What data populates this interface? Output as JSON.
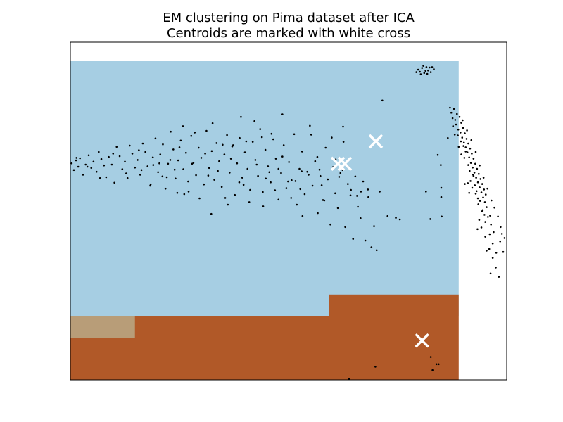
{
  "chart_data": {
    "type": "scatter",
    "title_lines": [
      "EM clustering on Pima dataset after ICA",
      "Centroids are marked with white cross"
    ],
    "xlabel": "",
    "ylabel": "",
    "xlim": [
      0,
      100
    ],
    "ylim": [
      0,
      80
    ],
    "axis_ticks": "none",
    "grid": false,
    "legend": "none",
    "region_colors": {
      "light_blue": "#a6cee3",
      "rust": "#b15928",
      "tan": "#b89d78",
      "white": "#ffffff"
    },
    "regions": [
      {
        "color": "light_blue",
        "x0": 0,
        "x1": 89,
        "y0": 15,
        "y1": 75.5
      },
      {
        "color": "rust",
        "x0": 0,
        "x1": 59.3,
        "y0": 0,
        "y1": 15
      },
      {
        "color": "rust",
        "x0": 59.3,
        "x1": 89,
        "y0": 0,
        "y1": 20.2
      },
      {
        "color": "tan",
        "x0": 0,
        "x1": 14.8,
        "y0": 10,
        "y1": 15
      }
    ],
    "point_color": "#000000",
    "centroid_color": "#ffffff",
    "centroids": [
      {
        "x": 61.3,
        "y": 51.2
      },
      {
        "x": 62.9,
        "y": 51.2
      },
      {
        "x": 70.0,
        "y": 56.5
      },
      {
        "x": 80.6,
        "y": 9.3
      }
    ],
    "points": [
      [
        0.3,
        51.3
      ],
      [
        0.8,
        49.7
      ],
      [
        1.3,
        52.0
      ],
      [
        1.8,
        50.5
      ],
      [
        2.2,
        52.5
      ],
      [
        2.9,
        48.6
      ],
      [
        3.5,
        51.0
      ],
      [
        4.2,
        53.2
      ],
      [
        4.8,
        50.2
      ],
      [
        5.3,
        51.7
      ],
      [
        6.0,
        49.3
      ],
      [
        6.5,
        54.0
      ],
      [
        7.1,
        52.3
      ],
      [
        7.7,
        50.8
      ],
      [
        8.2,
        48.0
      ],
      [
        8.8,
        52.8
      ],
      [
        9.5,
        51.0
      ],
      [
        10.1,
        46.7
      ],
      [
        10.6,
        55.2
      ],
      [
        11.3,
        53.0
      ],
      [
        11.9,
        49.9
      ],
      [
        12.5,
        51.7
      ],
      [
        13.1,
        47.8
      ],
      [
        13.6,
        55.5
      ],
      [
        14.2,
        53.6
      ],
      [
        14.8,
        50.3
      ],
      [
        15.4,
        52.1
      ],
      [
        16.0,
        48.6
      ],
      [
        16.6,
        56.0
      ],
      [
        17.2,
        54.0
      ],
      [
        17.7,
        50.6
      ],
      [
        18.3,
        46.0
      ],
      [
        18.9,
        52.7
      ],
      [
        19.5,
        57.2
      ],
      [
        20.1,
        49.2
      ],
      [
        20.6,
        53.4
      ],
      [
        21.2,
        55.8
      ],
      [
        21.8,
        45.3
      ],
      [
        22.4,
        51.2
      ],
      [
        23.0,
        58.8
      ],
      [
        23.6,
        54.6
      ],
      [
        24.1,
        47.7
      ],
      [
        24.7,
        52.0
      ],
      [
        25.3,
        56.7
      ],
      [
        25.9,
        49.9
      ],
      [
        26.5,
        53.8
      ],
      [
        27.1,
        44.6
      ],
      [
        27.7,
        57.8
      ],
      [
        28.2,
        51.4
      ],
      [
        28.8,
        48.5
      ],
      [
        29.4,
        55.0
      ],
      [
        30.0,
        52.6
      ],
      [
        30.6,
        46.3
      ],
      [
        31.2,
        59.0
      ],
      [
        31.8,
        50.2
      ],
      [
        32.4,
        54.2
      ],
      [
        33.0,
        47.4
      ],
      [
        33.5,
        56.1
      ],
      [
        34.1,
        51.8
      ],
      [
        34.7,
        45.7
      ],
      [
        35.3,
        53.4
      ],
      [
        35.9,
        58.0
      ],
      [
        36.5,
        49.1
      ],
      [
        37.1,
        55.3
      ],
      [
        37.7,
        43.8
      ],
      [
        38.2,
        51.3
      ],
      [
        38.8,
        57.3
      ],
      [
        39.4,
        47.9
      ],
      [
        40.0,
        53.9
      ],
      [
        40.6,
        50.0
      ],
      [
        41.2,
        45.0
      ],
      [
        41.8,
        56.4
      ],
      [
        42.4,
        52.1
      ],
      [
        43.0,
        48.3
      ],
      [
        43.5,
        59.4
      ],
      [
        44.1,
        44.5
      ],
      [
        44.7,
        54.5
      ],
      [
        45.3,
        50.6
      ],
      [
        45.9,
        46.8
      ],
      [
        46.5,
        57.0
      ],
      [
        47.1,
        52.4
      ],
      [
        47.7,
        42.7
      ],
      [
        48.3,
        49.0
      ],
      [
        48.9,
        55.6
      ],
      [
        49.5,
        45.4
      ],
      [
        50.1,
        51.6
      ],
      [
        50.7,
        47.3
      ],
      [
        51.3,
        58.2
      ],
      [
        51.9,
        41.5
      ],
      [
        52.5,
        50.0
      ],
      [
        53.1,
        54.1
      ],
      [
        53.7,
        44.0
      ],
      [
        54.3,
        49.3
      ],
      [
        54.9,
        60.2
      ],
      [
        55.5,
        46.0
      ],
      [
        56.1,
        51.8
      ],
      [
        56.7,
        39.5
      ],
      [
        57.3,
        48.3
      ],
      [
        57.9,
        42.6
      ],
      [
        58.5,
        55.0
      ],
      [
        59.0,
        47.5
      ],
      [
        59.6,
        36.8
      ],
      [
        60.2,
        50.4
      ],
      [
        60.7,
        44.2
      ],
      [
        61.3,
        40.7
      ],
      [
        61.9,
        49.0
      ],
      [
        62.5,
        60.0
      ],
      [
        63.0,
        36.2
      ],
      [
        63.6,
        46.4
      ],
      [
        64.2,
        43.7
      ],
      [
        64.8,
        33.4
      ],
      [
        65.3,
        48.2
      ],
      [
        65.9,
        41.0
      ],
      [
        66.5,
        38.3
      ],
      [
        67.1,
        47.0
      ],
      [
        67.6,
        33.0
      ],
      [
        68.3,
        43.3
      ],
      [
        69.0,
        31.4
      ],
      [
        69.6,
        36.4
      ],
      [
        70.2,
        30.7
      ],
      [
        70.9,
        44.6
      ],
      [
        71.5,
        66.2
      ],
      [
        72.7,
        38.8
      ],
      [
        74.6,
        38.4
      ],
      [
        75.5,
        38.0
      ],
      [
        81.5,
        44.6
      ],
      [
        82.5,
        38.1
      ],
      [
        84.2,
        53.3
      ],
      [
        84.9,
        50.9
      ],
      [
        85.0,
        45.5
      ],
      [
        85.0,
        43.3
      ],
      [
        85.1,
        38.7
      ],
      [
        86.5,
        57.3
      ],
      [
        1.4,
        52.6
      ],
      [
        3.9,
        50.5
      ],
      [
        6.8,
        47.8
      ],
      [
        9.8,
        53.6
      ],
      [
        12.8,
        48.9
      ],
      [
        15.7,
        54.4
      ],
      [
        19.0,
        50.9
      ],
      [
        22.1,
        48.0
      ],
      [
        25.0,
        55.1
      ],
      [
        27.9,
        51.2
      ],
      [
        30.9,
        53.6
      ],
      [
        33.8,
        49.5
      ],
      [
        36.8,
        52.4
      ],
      [
        39.7,
        46.2
      ],
      [
        42.7,
        51.0
      ],
      [
        45.6,
        49.2
      ],
      [
        48.6,
        52.9
      ],
      [
        51.6,
        47.1
      ],
      [
        54.6,
        48.6
      ],
      [
        57.6,
        46.1
      ],
      [
        26.1,
        44.0
      ],
      [
        29.6,
        43.0
      ],
      [
        32.3,
        39.3
      ],
      [
        36.1,
        41.5
      ],
      [
        38.7,
        46.8
      ],
      [
        41.0,
        42.1
      ],
      [
        44.2,
        41.1
      ],
      [
        46.9,
        44.9
      ],
      [
        50.6,
        43.1
      ],
      [
        53.2,
        38.8
      ],
      [
        22.9,
        52.1
      ],
      [
        34.9,
        55.7
      ],
      [
        37.3,
        55.6
      ],
      [
        43.9,
        57.5
      ],
      [
        40.3,
        56.5
      ],
      [
        20.4,
        51.3
      ],
      [
        23.9,
        49.8
      ],
      [
        35.5,
        43.1
      ],
      [
        58.2,
        42.5
      ],
      [
        52.7,
        45.2
      ],
      [
        64.3,
        45.0
      ],
      [
        66.6,
        44.6
      ],
      [
        65.7,
        43.6
      ],
      [
        68.2,
        45.1
      ],
      [
        62.4,
        49.7
      ],
      [
        60.8,
        52.2
      ],
      [
        61.6,
        48.1
      ],
      [
        63.7,
        50.5
      ],
      [
        56.6,
        52.8
      ],
      [
        57.1,
        49.8
      ],
      [
        32.6,
        60.8
      ],
      [
        39.1,
        62.3
      ],
      [
        42.2,
        61.3
      ],
      [
        48.6,
        62.9
      ],
      [
        28.5,
        58.6
      ],
      [
        25.8,
        60.1
      ],
      [
        46.1,
        58.3
      ],
      [
        55.2,
        58.1
      ],
      [
        59.9,
        57.4
      ],
      [
        62.6,
        56.4
      ],
      [
        21.1,
        48.2
      ],
      [
        18.4,
        46.3
      ],
      [
        16.3,
        49.7
      ],
      [
        31.6,
        48.4
      ],
      [
        27.0,
        47.0
      ],
      [
        24.5,
        44.3
      ],
      [
        44.8,
        47.7
      ],
      [
        49.9,
        47.0
      ],
      [
        53.0,
        49.4
      ],
      [
        47.7,
        50.0
      ],
      [
        79.7,
        73.5
      ],
      [
        80.1,
        73.0
      ],
      [
        80.6,
        73.9
      ],
      [
        81.1,
        72.7
      ],
      [
        81.6,
        74.1
      ],
      [
        82.0,
        73.3
      ],
      [
        82.6,
        72.9
      ],
      [
        83.3,
        73.6
      ],
      [
        79.3,
        72.9
      ],
      [
        80.9,
        74.4
      ],
      [
        81.8,
        72.5
      ],
      [
        82.9,
        74.1
      ],
      [
        80.3,
        72.4
      ],
      [
        81.4,
        73.2
      ],
      [
        82.3,
        74.0
      ],
      [
        87.0,
        64.5
      ],
      [
        87.3,
        63.3
      ],
      [
        87.6,
        62.0
      ],
      [
        87.9,
        64.2
      ],
      [
        88.2,
        61.6
      ],
      [
        88.4,
        60.5
      ],
      [
        88.6,
        63.0
      ],
      [
        88.9,
        59.3
      ],
      [
        89.2,
        62.3
      ],
      [
        89.4,
        58.6
      ],
      [
        89.6,
        60.9
      ],
      [
        89.8,
        57.4
      ],
      [
        90.0,
        59.7
      ],
      [
        90.2,
        56.2
      ],
      [
        90.4,
        58.4
      ],
      [
        90.6,
        55.1
      ],
      [
        90.8,
        57.1
      ],
      [
        91.0,
        53.9
      ],
      [
        91.2,
        56.0
      ],
      [
        91.4,
        52.7
      ],
      [
        91.6,
        54.8
      ],
      [
        91.8,
        51.4
      ],
      [
        92.0,
        53.6
      ],
      [
        92.2,
        50.3
      ],
      [
        92.4,
        52.4
      ],
      [
        92.6,
        49.1
      ],
      [
        92.8,
        51.2
      ],
      [
        93.0,
        47.9
      ],
      [
        93.2,
        50.0
      ],
      [
        93.4,
        46.8
      ],
      [
        93.6,
        48.8
      ],
      [
        93.8,
        45.6
      ],
      [
        94.0,
        47.6
      ],
      [
        94.2,
        44.4
      ],
      [
        94.4,
        46.4
      ],
      [
        94.6,
        43.2
      ],
      [
        94.8,
        45.1
      ],
      [
        95.0,
        42.1
      ],
      [
        95.2,
        43.9
      ],
      [
        95.4,
        40.9
      ],
      [
        89.5,
        56.5
      ],
      [
        90.6,
        54.1
      ],
      [
        91.2,
        50.9
      ],
      [
        92.4,
        48.3
      ],
      [
        93.1,
        44.7
      ],
      [
        93.9,
        42.4
      ],
      [
        94.5,
        40.2
      ],
      [
        95.7,
        38.6
      ],
      [
        96.4,
        36.8
      ],
      [
        97.0,
        35.0
      ],
      [
        88.1,
        58.1
      ],
      [
        89.0,
        55.2
      ],
      [
        90.3,
        52.6
      ],
      [
        91.5,
        49.5
      ],
      [
        92.7,
        46.1
      ],
      [
        93.4,
        43.0
      ],
      [
        94.3,
        39.9
      ],
      [
        95.1,
        37.4
      ],
      [
        96.1,
        34.5
      ],
      [
        96.8,
        32.3
      ],
      [
        89.9,
        61.5
      ],
      [
        90.9,
        59.1
      ],
      [
        91.9,
        56.8
      ],
      [
        92.9,
        54.0
      ],
      [
        93.8,
        50.8
      ],
      [
        94.7,
        47.9
      ],
      [
        95.6,
        45.3
      ],
      [
        96.5,
        42.5
      ],
      [
        97.2,
        40.8
      ],
      [
        98.0,
        38.7
      ],
      [
        90.4,
        46.4
      ],
      [
        91.1,
        46.6
      ],
      [
        92.9,
        44.1
      ],
      [
        93.7,
        37.9
      ],
      [
        95.1,
        33.9
      ],
      [
        96.0,
        31.0
      ],
      [
        96.8,
        28.9
      ],
      [
        97.5,
        26.6
      ],
      [
        98.5,
        32.8
      ],
      [
        99.5,
        33.6
      ],
      [
        87.7,
        60.1
      ],
      [
        88.8,
        57.9
      ],
      [
        89.6,
        53.4
      ],
      [
        90.1,
        55.4
      ],
      [
        91.7,
        47.1
      ],
      [
        92.1,
        45.5
      ],
      [
        93.5,
        41.6
      ],
      [
        94.2,
        36.1
      ],
      [
        95.4,
        30.6
      ],
      [
        96.3,
        25.2
      ],
      [
        98.2,
        24.4
      ],
      [
        98.9,
        34.6
      ],
      [
        99.2,
        30.3
      ],
      [
        98.6,
        36.2
      ],
      [
        97.6,
        30.1
      ],
      [
        96.2,
        38.9
      ],
      [
        94.9,
        39.1
      ],
      [
        93.3,
        35.7
      ],
      [
        92.3,
        48.6
      ],
      [
        91.4,
        44.3
      ],
      [
        82.6,
        5.4
      ],
      [
        83.0,
        2.3
      ],
      [
        84.4,
        3.7
      ],
      [
        83.9,
        3.7
      ],
      [
        69.9,
        3.1
      ],
      [
        63.9,
        0.2
      ]
    ]
  }
}
